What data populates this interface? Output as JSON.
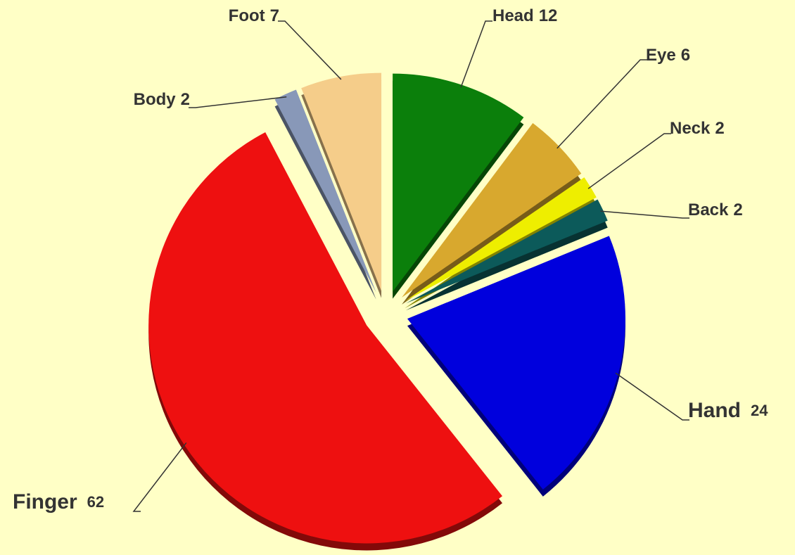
{
  "chart_data": {
    "type": "pie",
    "categories": [
      "Head",
      "Eye",
      "Neck",
      "Back",
      "Hand",
      "Finger",
      "Body",
      "Foot"
    ],
    "values": [
      12,
      6,
      2,
      2,
      24,
      62,
      2,
      7
    ],
    "colors": [
      "#0b7f0b",
      "#d8a82e",
      "#eeee00",
      "#0c5a5a",
      "#0000dd",
      "#ee1010",
      "#8898b8",
      "#f5cd8a"
    ]
  }
}
